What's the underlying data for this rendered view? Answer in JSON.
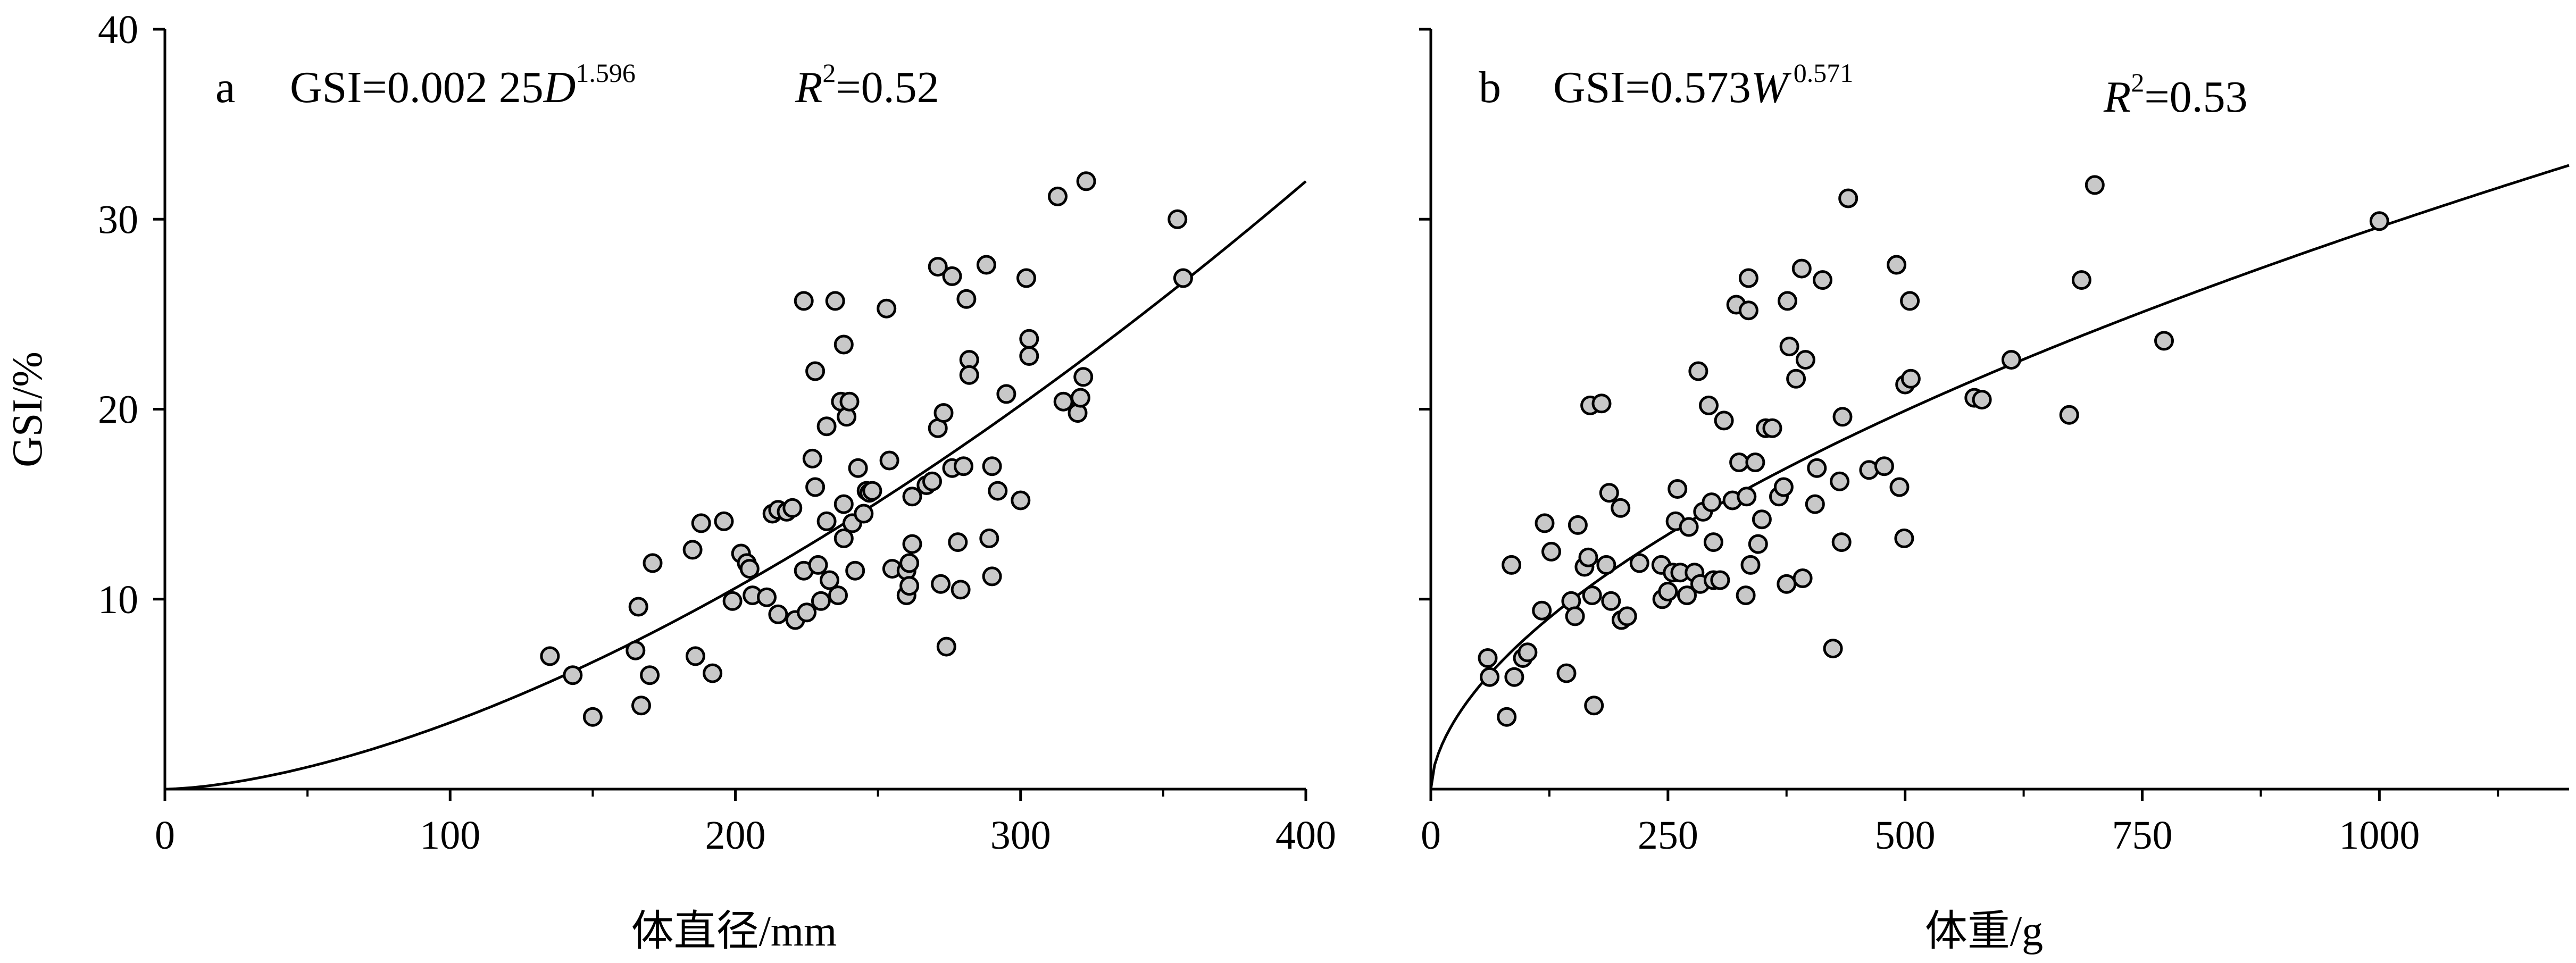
{
  "chart_data": [
    {
      "type": "scatter",
      "panel_label": "a",
      "equation": {
        "lhs": "GSI=0.002 25",
        "var": "D",
        "exp": "1.596"
      },
      "r2": {
        "sym": "R",
        "exp": "2",
        "val": "=0.52"
      },
      "xlabel": "体直径/mm",
      "ylabel": "GSI/%",
      "xlim": [
        0,
        400
      ],
      "ylim": [
        0,
        40
      ],
      "xticks": [
        0,
        100,
        200,
        300,
        400
      ],
      "yticks": [
        10,
        20,
        30,
        40
      ],
      "xtick_labels": [
        "0",
        "100",
        "200",
        "300",
        "400"
      ],
      "ytick_labels": [
        "10",
        "20",
        "30",
        "40"
      ],
      "fit": {
        "a": 0.00225,
        "b": 1.596,
        "x_range": [
          0,
          400
        ]
      },
      "points": [
        [
          135,
          7.0
        ],
        [
          143,
          6.0
        ],
        [
          150,
          3.8
        ],
        [
          165,
          7.3
        ],
        [
          166,
          9.6
        ],
        [
          167,
          4.4
        ],
        [
          170,
          6.0
        ],
        [
          171,
          11.9
        ],
        [
          185,
          12.6
        ],
        [
          186,
          7.0
        ],
        [
          188,
          14.0
        ],
        [
          192,
          6.1
        ],
        [
          196,
          14.1
        ],
        [
          199,
          9.9
        ],
        [
          202,
          12.4
        ],
        [
          204,
          11.9
        ],
        [
          205,
          11.6
        ],
        [
          206,
          10.2
        ],
        [
          211,
          10.1
        ],
        [
          213,
          14.5
        ],
        [
          215,
          14.7
        ],
        [
          215,
          9.2
        ],
        [
          218,
          14.6
        ],
        [
          220,
          14.8
        ],
        [
          221,
          8.9
        ],
        [
          224,
          25.7
        ],
        [
          224,
          11.5
        ],
        [
          225,
          9.3
        ],
        [
          227,
          17.4
        ],
        [
          228,
          22.0
        ],
        [
          228,
          15.9
        ],
        [
          229,
          11.8
        ],
        [
          230,
          9.9
        ],
        [
          232,
          14.1
        ],
        [
          232,
          19.1
        ],
        [
          233,
          11.0
        ],
        [
          235,
          25.7
        ],
        [
          236,
          10.2
        ],
        [
          237,
          20.4
        ],
        [
          238,
          23.4
        ],
        [
          238,
          15.0
        ],
        [
          238,
          13.2
        ],
        [
          239,
          19.6
        ],
        [
          240,
          20.4
        ],
        [
          241,
          14.0
        ],
        [
          242,
          11.5
        ],
        [
          243,
          16.9
        ],
        [
          245,
          14.5
        ],
        [
          246,
          15.7
        ],
        [
          247,
          15.6
        ],
        [
          248,
          15.7
        ],
        [
          253,
          25.3
        ],
        [
          254,
          17.3
        ],
        [
          255,
          11.6
        ],
        [
          260,
          11.5
        ],
        [
          260,
          10.2
        ],
        [
          261,
          10.7
        ],
        [
          261,
          11.9
        ],
        [
          262,
          15.4
        ],
        [
          262,
          12.9
        ],
        [
          267,
          16.0
        ],
        [
          269,
          16.2
        ],
        [
          271,
          27.5
        ],
        [
          271,
          19.0
        ],
        [
          272,
          10.8
        ],
        [
          273,
          19.8
        ],
        [
          274,
          7.5
        ],
        [
          276,
          27.0
        ],
        [
          276,
          16.9
        ],
        [
          278,
          13.0
        ],
        [
          279,
          10.5
        ],
        [
          280,
          17.0
        ],
        [
          281,
          25.8
        ],
        [
          282,
          22.6
        ],
        [
          282,
          21.8
        ],
        [
          288,
          27.6
        ],
        [
          289,
          13.2
        ],
        [
          290,
          17.0
        ],
        [
          290,
          11.2
        ],
        [
          292,
          15.7
        ],
        [
          295,
          20.8
        ],
        [
          300,
          15.2
        ],
        [
          302,
          26.9
        ],
        [
          303,
          23.7
        ],
        [
          303,
          22.8
        ],
        [
          313,
          31.2
        ],
        [
          315,
          20.4
        ],
        [
          320,
          19.8
        ],
        [
          321,
          20.6
        ],
        [
          322,
          21.7
        ],
        [
          323,
          32.0
        ],
        [
          355,
          30.0
        ],
        [
          357,
          26.9
        ]
      ]
    },
    {
      "type": "scatter",
      "panel_label": "b",
      "equation": {
        "lhs": "GSI=0.573",
        "var": "W",
        "exp": "0.571"
      },
      "r2": {
        "sym": "R",
        "exp": "2",
        "val": "=0.53"
      },
      "xlabel": "体重/g",
      "ylabel": "",
      "xlim": [
        0,
        1200
      ],
      "ylim": [
        0,
        40
      ],
      "xticks": [
        0,
        250,
        500,
        750,
        1000
      ],
      "yticks": [
        10,
        20,
        30,
        40
      ],
      "xtick_labels": [
        "0",
        "250",
        "500",
        "750",
        "1000"
      ],
      "ytick_labels": [],
      "fit": {
        "a": 0.573,
        "b": 0.571,
        "x_range": [
          0,
          1200
        ]
      },
      "points": [
        [
          60,
          6.9
        ],
        [
          62,
          5.9
        ],
        [
          80,
          3.8
        ],
        [
          85,
          11.8
        ],
        [
          88,
          5.9
        ],
        [
          97,
          6.9
        ],
        [
          102,
          7.2
        ],
        [
          117,
          9.4
        ],
        [
          120,
          14.0
        ],
        [
          127,
          12.5
        ],
        [
          143,
          6.1
        ],
        [
          148,
          9.9
        ],
        [
          152,
          9.1
        ],
        [
          155,
          13.9
        ],
        [
          162,
          11.7
        ],
        [
          166,
          12.2
        ],
        [
          168,
          20.2
        ],
        [
          170,
          10.2
        ],
        [
          172,
          4.4
        ],
        [
          180,
          20.3
        ],
        [
          185,
          11.8
        ],
        [
          188,
          15.6
        ],
        [
          190,
          9.9
        ],
        [
          200,
          14.8
        ],
        [
          201,
          8.9
        ],
        [
          207,
          9.1
        ],
        [
          220,
          11.9
        ],
        [
          243,
          11.8
        ],
        [
          244,
          10.0
        ],
        [
          250,
          10.4
        ],
        [
          255,
          11.4
        ],
        [
          258,
          14.1
        ],
        [
          260,
          15.8
        ],
        [
          263,
          11.4
        ],
        [
          270,
          10.2
        ],
        [
          272,
          13.8
        ],
        [
          278,
          11.4
        ],
        [
          282,
          22.0
        ],
        [
          284,
          10.8
        ],
        [
          287,
          14.6
        ],
        [
          293,
          20.2
        ],
        [
          296,
          15.1
        ],
        [
          298,
          11.0
        ],
        [
          298,
          13.0
        ],
        [
          305,
          11.0
        ],
        [
          309,
          19.4
        ],
        [
          318,
          15.2
        ],
        [
          322,
          25.5
        ],
        [
          325,
          17.2
        ],
        [
          332,
          10.2
        ],
        [
          333,
          15.4
        ],
        [
          335,
          26.9
        ],
        [
          335,
          25.2
        ],
        [
          337,
          11.8
        ],
        [
          342,
          17.2
        ],
        [
          345,
          12.9
        ],
        [
          349,
          14.2
        ],
        [
          353,
          19.0
        ],
        [
          360,
          19.0
        ],
        [
          367,
          15.4
        ],
        [
          372,
          15.9
        ],
        [
          375,
          10.8
        ],
        [
          376,
          25.7
        ],
        [
          378,
          23.3
        ],
        [
          385,
          21.6
        ],
        [
          391,
          27.4
        ],
        [
          392,
          11.1
        ],
        [
          395,
          22.6
        ],
        [
          405,
          15.0
        ],
        [
          407,
          16.9
        ],
        [
          413,
          26.8
        ],
        [
          424,
          7.4
        ],
        [
          431,
          16.2
        ],
        [
          433,
          13.0
        ],
        [
          434,
          19.6
        ],
        [
          440,
          31.1
        ],
        [
          462,
          16.8
        ],
        [
          478,
          17.0
        ],
        [
          491,
          27.6
        ],
        [
          494,
          15.9
        ],
        [
          499,
          13.2
        ],
        [
          500,
          21.3
        ],
        [
          505,
          25.7
        ],
        [
          506,
          21.6
        ],
        [
          573,
          20.6
        ],
        [
          581,
          20.5
        ],
        [
          612,
          22.6
        ],
        [
          673,
          19.7
        ],
        [
          686,
          26.8
        ],
        [
          700,
          31.8
        ],
        [
          773,
          23.6
        ],
        [
          1000,
          29.9
        ]
      ]
    }
  ]
}
